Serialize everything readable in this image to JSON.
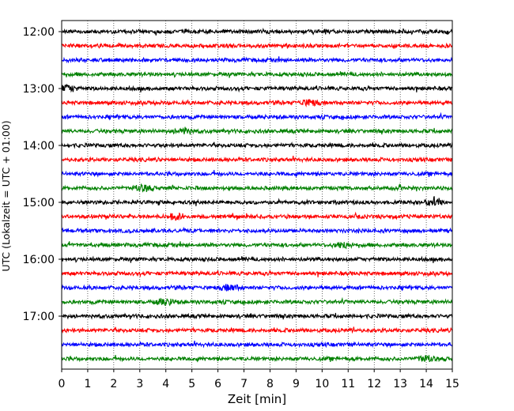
{
  "chart_data": {
    "type": "line",
    "title": "",
    "xlabel": "Zeit  [min]",
    "ylabel": "UTC (Lokalzeit = UTC + 01:00)",
    "xlim": [
      0,
      15
    ],
    "x_ticks": [
      0,
      1,
      2,
      3,
      4,
      5,
      6,
      7,
      8,
      9,
      10,
      11,
      12,
      13,
      14,
      15
    ],
    "x_tick_labels": [
      "0",
      "1",
      "2",
      "3",
      "4",
      "5",
      "6",
      "7",
      "8",
      "9",
      "10",
      "11",
      "12",
      "13",
      "14",
      "15"
    ],
    "y_tick_labels": [
      "12:00",
      "13:00",
      "14:00",
      "15:00",
      "16:00",
      "17:00"
    ],
    "y_tick_hours": [
      12,
      13,
      14,
      15,
      16,
      17
    ],
    "trace_interval_minutes": 15,
    "vertical_grid": "dotted",
    "color_cycle": [
      "#000000",
      "#ff0000",
      "#0000ff",
      "#008000"
    ],
    "traces": [
      {
        "start": "12:00",
        "color": "#000000"
      },
      {
        "start": "12:15",
        "color": "#ff0000"
      },
      {
        "start": "12:30",
        "color": "#0000ff"
      },
      {
        "start": "12:45",
        "color": "#008000"
      },
      {
        "start": "13:00",
        "color": "#000000",
        "event_minute": 0.25
      },
      {
        "start": "13:15",
        "color": "#ff0000",
        "event_minute": 9.5
      },
      {
        "start": "13:30",
        "color": "#0000ff"
      },
      {
        "start": "13:45",
        "color": "#008000",
        "event_minute": 4.7
      },
      {
        "start": "14:00",
        "color": "#000000"
      },
      {
        "start": "14:15",
        "color": "#ff0000"
      },
      {
        "start": "14:30",
        "color": "#0000ff"
      },
      {
        "start": "14:45",
        "color": "#008000",
        "event_minute": 3.1
      },
      {
        "start": "15:00",
        "color": "#000000",
        "event_minute": 14.3
      },
      {
        "start": "15:15",
        "color": "#ff0000",
        "event_minute": 4.4
      },
      {
        "start": "15:30",
        "color": "#0000ff"
      },
      {
        "start": "15:45",
        "color": "#008000",
        "event_minute": 10.8
      },
      {
        "start": "16:00",
        "color": "#000000"
      },
      {
        "start": "16:15",
        "color": "#ff0000"
      },
      {
        "start": "16:30",
        "color": "#0000ff",
        "event_minute": 6.5
      },
      {
        "start": "16:45",
        "color": "#008000",
        "event_minute": 4.0
      },
      {
        "start": "17:00",
        "color": "#000000"
      },
      {
        "start": "17:15",
        "color": "#ff0000"
      },
      {
        "start": "17:30",
        "color": "#0000ff"
      },
      {
        "start": "17:45",
        "color": "#008000",
        "event_minute": 14.0
      }
    ]
  }
}
